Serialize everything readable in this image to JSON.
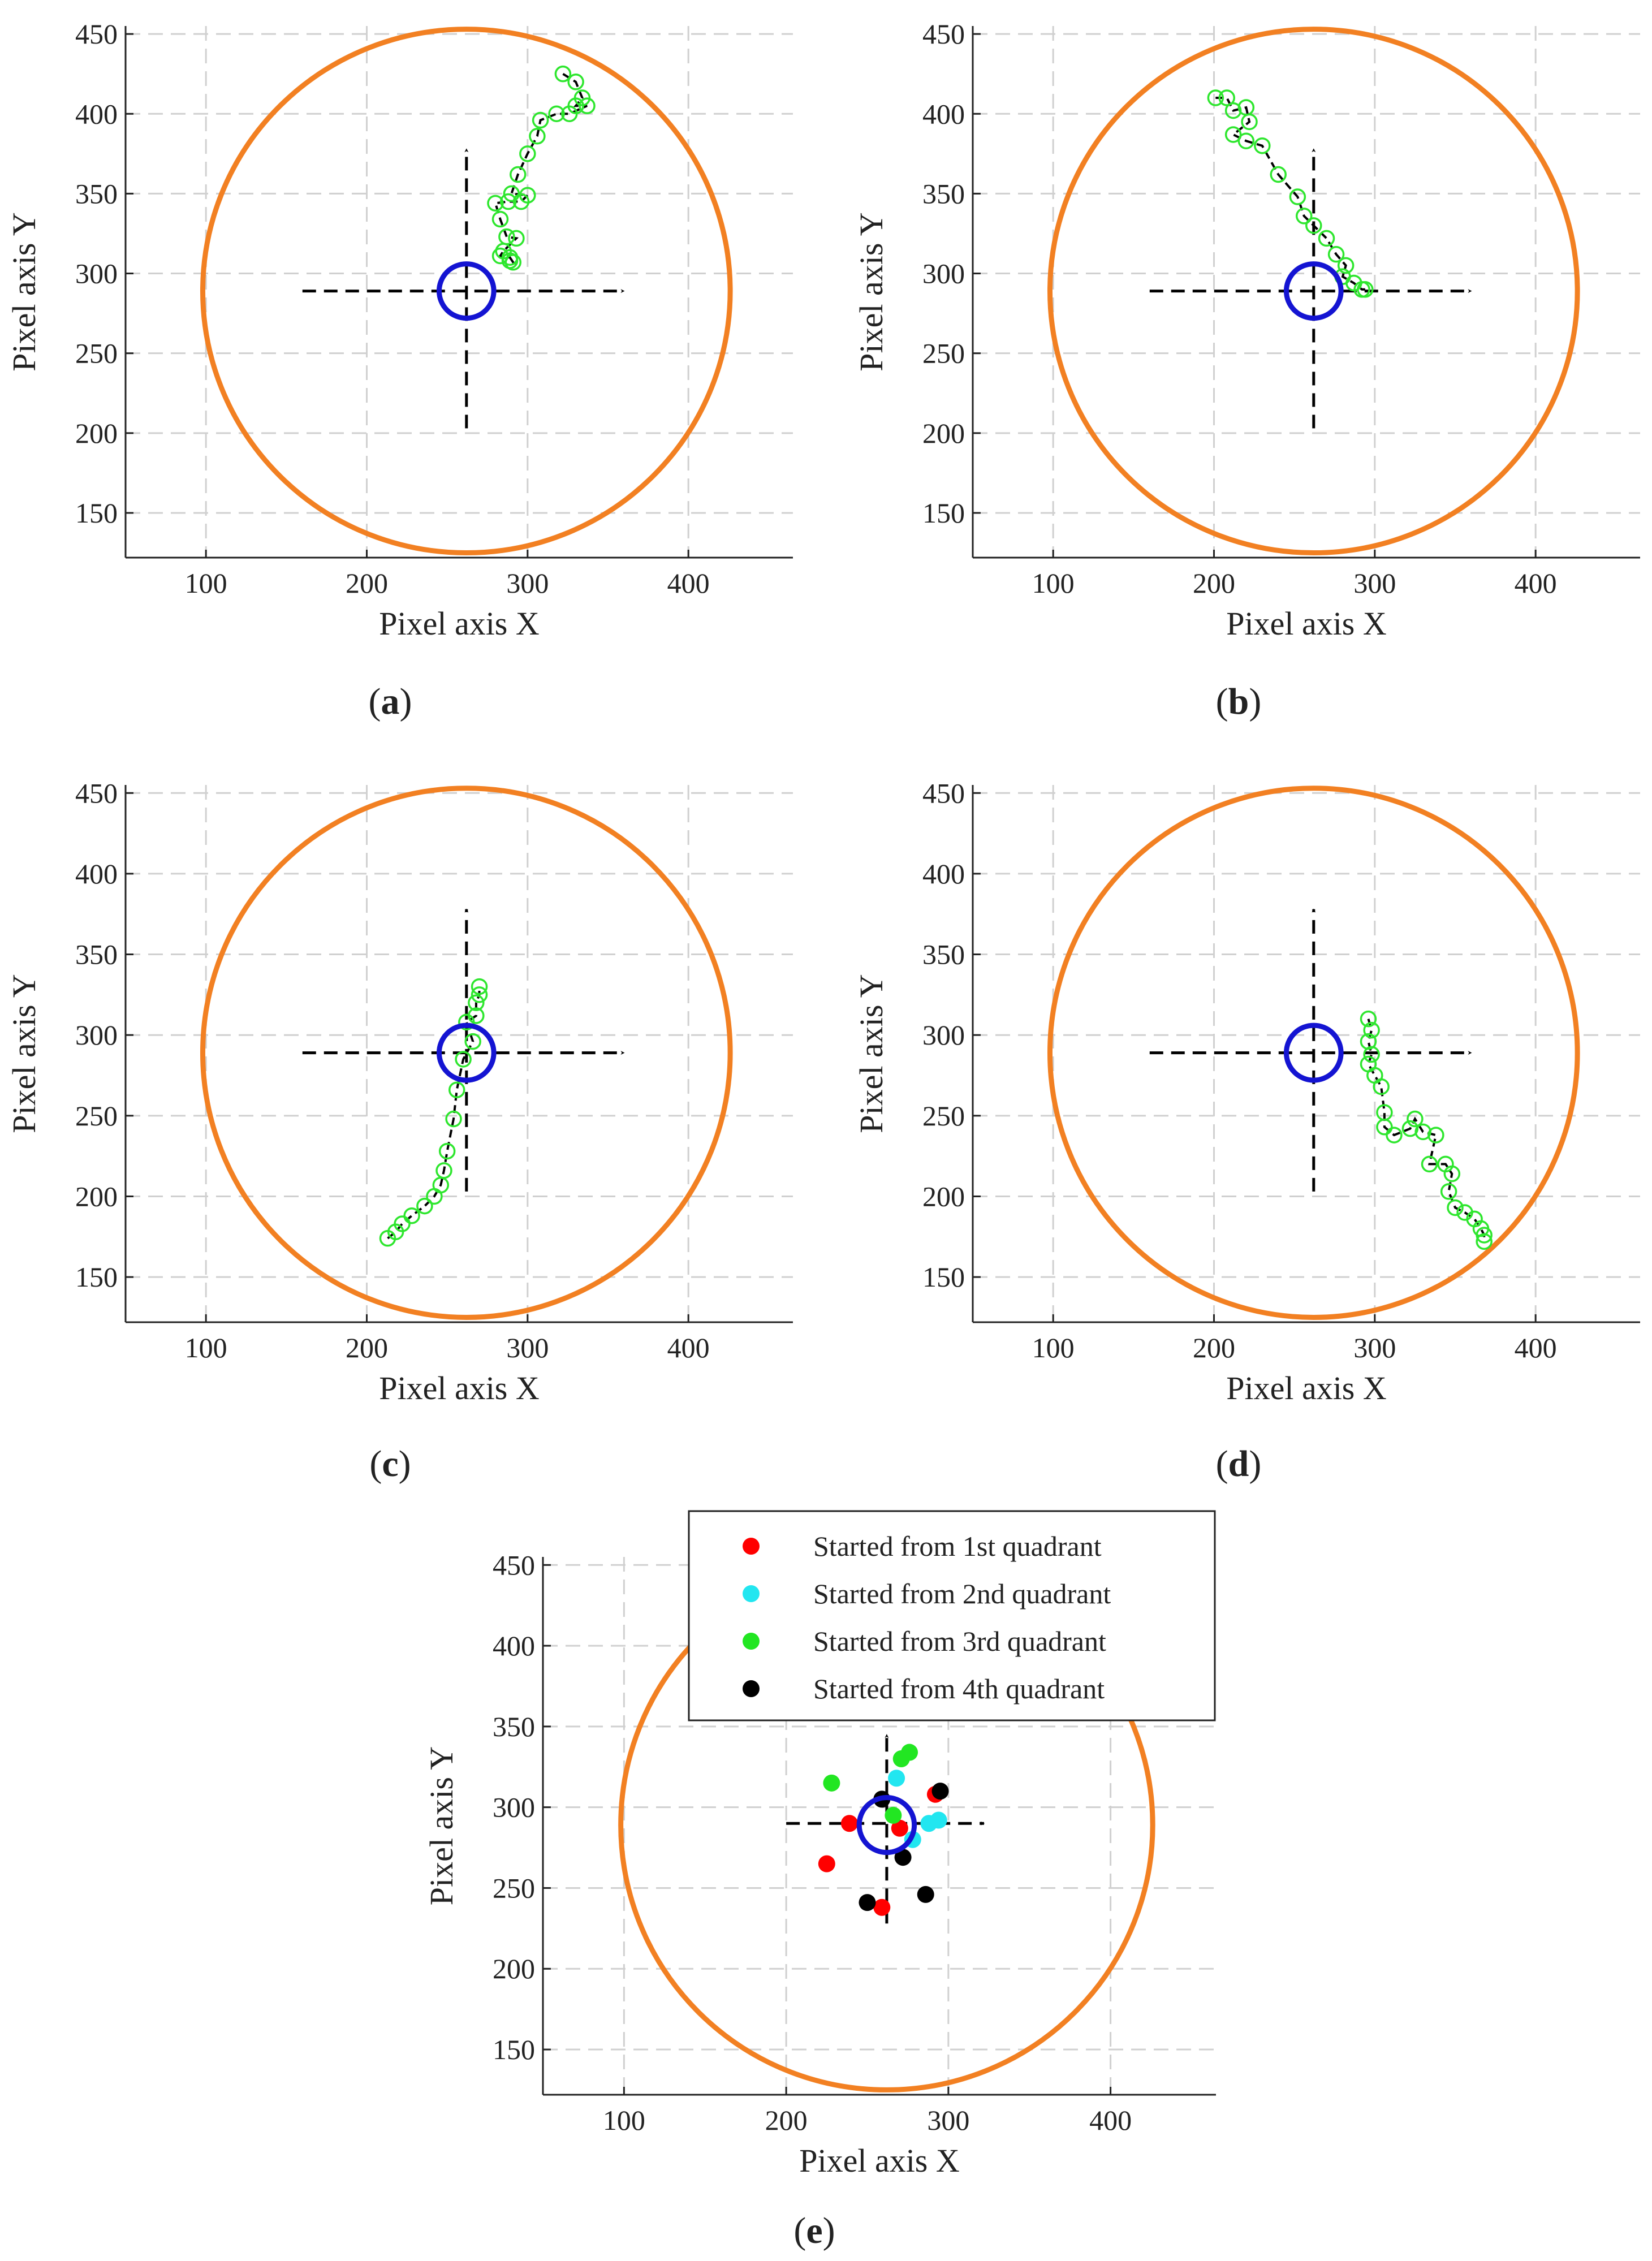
{
  "colors": {
    "boundary": "#f28022",
    "target": "#1414d2",
    "path_marker": "#2ee62e",
    "path_line": "#000000",
    "grid": "#d0d0d0",
    "q1": "#ff0000",
    "q2": "#22e6f0",
    "q3": "#22e622",
    "q4": "#000000"
  },
  "chart_data": [
    {
      "type": "line",
      "label": "(a)",
      "xlabel": "Pixel axis X",
      "ylabel": "Pixel axis Y",
      "xlim": [
        50,
        465
      ],
      "ylim": [
        122,
        455
      ],
      "xticks": [
        100,
        200,
        300,
        400
      ],
      "yticks": [
        150,
        200,
        250,
        300,
        350,
        400,
        450
      ],
      "grid": true,
      "boundary_circle": {
        "cx": 262,
        "cy": 289,
        "r": 164
      },
      "target_circle": {
        "cx": 262,
        "cy": 289,
        "r": 17
      },
      "axes_arrows": {
        "h": [
          160,
          360,
          289
        ],
        "v": [
          262,
          203,
          378
        ]
      },
      "path": [
        [
          322,
          425
        ],
        [
          330,
          420
        ],
        [
          334,
          410
        ],
        [
          330,
          405
        ],
        [
          337,
          405
        ],
        [
          326,
          400
        ],
        [
          318,
          400
        ],
        [
          308,
          396
        ],
        [
          306,
          386
        ],
        [
          300,
          375
        ],
        [
          294,
          362
        ],
        [
          290,
          350
        ],
        [
          300,
          349
        ],
        [
          296,
          345
        ],
        [
          288,
          345
        ],
        [
          280,
          344
        ],
        [
          283,
          334
        ],
        [
          287,
          323
        ],
        [
          293,
          322
        ],
        [
          285,
          314
        ],
        [
          283,
          311
        ],
        [
          289,
          310
        ],
        [
          291,
          307
        ],
        [
          289,
          308
        ]
      ]
    },
    {
      "type": "line",
      "label": "(b)",
      "xlabel": "Pixel axis X",
      "ylabel": "Pixel axis Y",
      "xlim": [
        50,
        465
      ],
      "ylim": [
        122,
        455
      ],
      "xticks": [
        100,
        200,
        300,
        400
      ],
      "yticks": [
        150,
        200,
        250,
        300,
        350,
        400,
        450
      ],
      "grid": true,
      "boundary_circle": {
        "cx": 262,
        "cy": 289,
        "r": 164
      },
      "target_circle": {
        "cx": 262,
        "cy": 289,
        "r": 17
      },
      "axes_arrows": {
        "h": [
          160,
          360,
          289
        ],
        "v": [
          262,
          203,
          378
        ]
      },
      "path": [
        [
          201,
          410
        ],
        [
          208,
          410
        ],
        [
          212,
          402
        ],
        [
          220,
          404
        ],
        [
          222,
          395
        ],
        [
          212,
          387
        ],
        [
          220,
          383
        ],
        [
          230,
          380
        ],
        [
          240,
          362
        ],
        [
          252,
          348
        ],
        [
          256,
          336
        ],
        [
          262,
          330
        ],
        [
          270,
          322
        ],
        [
          276,
          312
        ],
        [
          282,
          305
        ],
        [
          280,
          298
        ],
        [
          287,
          294
        ],
        [
          292,
          290
        ],
        [
          294,
          290
        ]
      ]
    },
    {
      "type": "line",
      "label": "(c)",
      "xlabel": "Pixel axis X",
      "ylabel": "Pixel axis Y",
      "xlim": [
        50,
        465
      ],
      "ylim": [
        122,
        455
      ],
      "xticks": [
        100,
        200,
        300,
        400
      ],
      "yticks": [
        150,
        200,
        250,
        300,
        350,
        400,
        450
      ],
      "grid": true,
      "boundary_circle": {
        "cx": 262,
        "cy": 289,
        "r": 164
      },
      "target_circle": {
        "cx": 262,
        "cy": 289,
        "r": 17
      },
      "axes_arrows": {
        "h": [
          160,
          360,
          289
        ],
        "v": [
          262,
          203,
          378
        ]
      },
      "path": [
        [
          213,
          174
        ],
        [
          218,
          178
        ],
        [
          222,
          183
        ],
        [
          228,
          188
        ],
        [
          236,
          194
        ],
        [
          242,
          200
        ],
        [
          246,
          207
        ],
        [
          248,
          216
        ],
        [
          250,
          228
        ],
        [
          254,
          248
        ],
        [
          256,
          266
        ],
        [
          260,
          285
        ],
        [
          266,
          296
        ],
        [
          262,
          308
        ],
        [
          268,
          312
        ],
        [
          268,
          320
        ],
        [
          270,
          325
        ],
        [
          270,
          330
        ]
      ]
    },
    {
      "type": "line",
      "label": "(d)",
      "xlabel": "Pixel axis X",
      "ylabel": "Pixel axis Y",
      "xlim": [
        50,
        465
      ],
      "ylim": [
        122,
        455
      ],
      "xticks": [
        100,
        200,
        300,
        400
      ],
      "yticks": [
        150,
        200,
        250,
        300,
        350,
        400,
        450
      ],
      "grid": true,
      "boundary_circle": {
        "cx": 262,
        "cy": 289,
        "r": 164
      },
      "target_circle": {
        "cx": 262,
        "cy": 289,
        "r": 17
      },
      "axes_arrows": {
        "h": [
          160,
          360,
          289
        ],
        "v": [
          262,
          203,
          378
        ]
      },
      "path": [
        [
          296,
          310
        ],
        [
          298,
          303
        ],
        [
          296,
          296
        ],
        [
          298,
          288
        ],
        [
          296,
          282
        ],
        [
          300,
          275
        ],
        [
          304,
          268
        ],
        [
          306,
          252
        ],
        [
          306,
          243
        ],
        [
          312,
          238
        ],
        [
          322,
          242
        ],
        [
          325,
          248
        ],
        [
          330,
          240
        ],
        [
          338,
          238
        ],
        [
          334,
          220
        ],
        [
          344,
          220
        ],
        [
          348,
          214
        ],
        [
          346,
          203
        ],
        [
          350,
          193
        ],
        [
          356,
          190
        ],
        [
          362,
          186
        ],
        [
          366,
          180
        ],
        [
          368,
          176
        ],
        [
          368,
          172
        ]
      ]
    },
    {
      "type": "scatter",
      "label": "(e)",
      "xlabel": "Pixel axis X",
      "ylabel": "Pixel axis Y",
      "xlim": [
        50,
        465
      ],
      "ylim": [
        122,
        455
      ],
      "xticks": [
        100,
        200,
        300,
        400
      ],
      "yticks": [
        150,
        200,
        250,
        300,
        350,
        400,
        450
      ],
      "grid": true,
      "legend": "top-right",
      "boundary_circle": {
        "cx": 262,
        "cy": 289,
        "r": 164
      },
      "target_circle": {
        "cx": 262,
        "cy": 289,
        "r": 17
      },
      "axes_arrows": {
        "h": [
          200,
          322,
          290
        ],
        "v": [
          262,
          228,
          345
        ]
      },
      "series": [
        {
          "name": "Started from 1st quadrant",
          "color_key": "q1",
          "points": [
            [
              239,
              290
            ],
            [
              225,
              265
            ],
            [
              259,
              238
            ],
            [
              292,
              308
            ],
            [
              270,
              287
            ]
          ]
        },
        {
          "name": "Started from 2nd quadrant",
          "color_key": "q2",
          "points": [
            [
              268,
              318
            ],
            [
              278,
              280
            ],
            [
              288,
              290
            ],
            [
              294,
              292
            ]
          ]
        },
        {
          "name": "Started from 3rd quadrant",
          "color_key": "q3",
          "points": [
            [
              228,
              315
            ],
            [
              271,
              330
            ],
            [
              276,
              334
            ],
            [
              266,
              295
            ]
          ]
        },
        {
          "name": "Started from 4th quadrant",
          "color_key": "q4",
          "points": [
            [
              259,
              305
            ],
            [
              295,
              310
            ],
            [
              272,
              269
            ],
            [
              286,
              246
            ],
            [
              250,
              241
            ]
          ]
        }
      ]
    }
  ]
}
